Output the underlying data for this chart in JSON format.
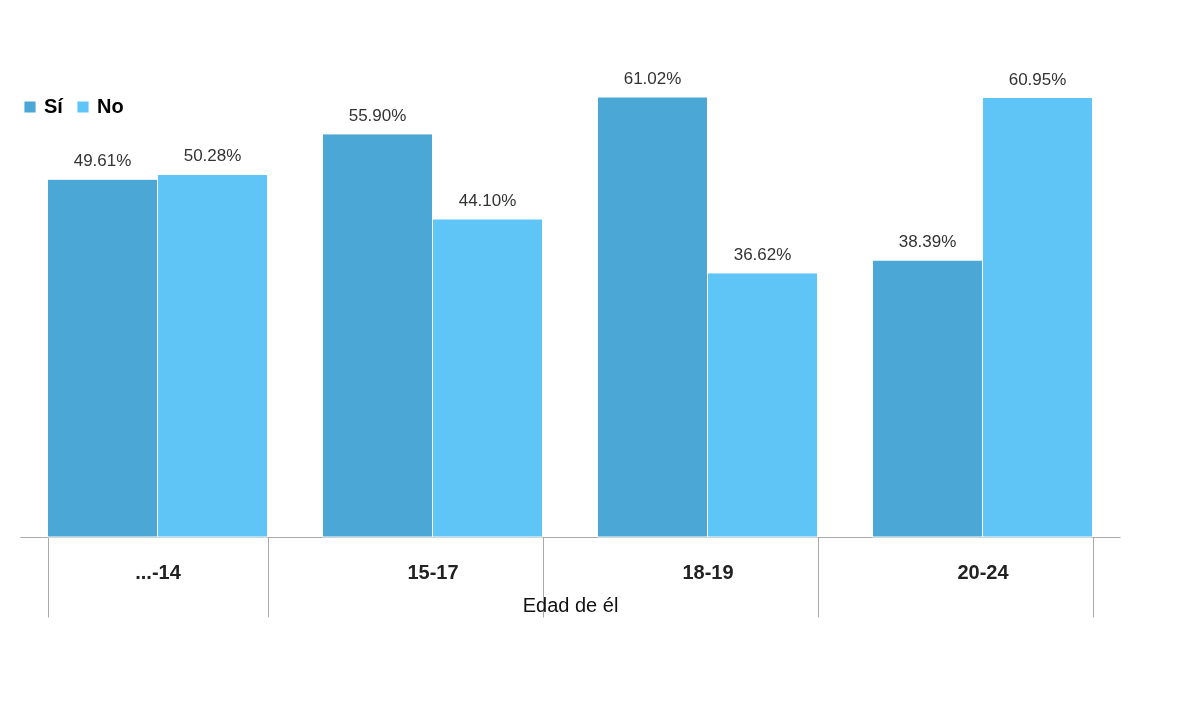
{
  "chart_data": {
    "type": "bar",
    "xlabel": "Edad de él",
    "categories": [
      "...-14",
      "15-17",
      "18-19",
      "20-24"
    ],
    "series": [
      {
        "name": "Sí",
        "color": "#4ba7d5",
        "values": [
          49.61,
          55.9,
          61.02,
          38.39
        ],
        "value_labels": [
          "49.61%",
          "55.90%",
          "61.02%",
          "38.39%"
        ]
      },
      {
        "name": "No",
        "color": "#5fc5f6",
        "values": [
          50.28,
          44.1,
          36.62,
          60.95
        ],
        "value_labels": [
          "50.28%",
          "44.10%",
          "36.62%",
          "60.95%"
        ]
      }
    ],
    "legend": "top left",
    "grid": false
  }
}
